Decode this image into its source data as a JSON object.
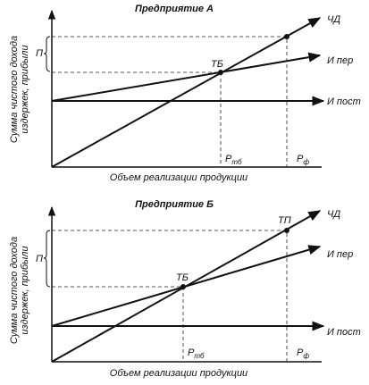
{
  "panels": [
    {
      "title": "Предприятие А",
      "y_label": [
        "Сумма чистого дохода",
        "издержек, прибыли"
      ],
      "profit": "П",
      "breakeven": "ТБ",
      "net_income": "ЧД",
      "variable_costs": "И пер",
      "fixed_costs": "И пост",
      "p_tb": {
        "main": "Р",
        "sub": "тб"
      },
      "p_f": {
        "main": "Р",
        "sub": "ф"
      },
      "x_label": "Объем реализации продукции"
    },
    {
      "title": "Предприятие Б",
      "y_label": [
        "Сумма чистого дохода",
        "издержек, прибыли"
      ],
      "profit": "П",
      "breakeven": "ТБ",
      "profit_point": "ТП",
      "net_income": "ЧД",
      "variable_costs": "И пер",
      "fixed_costs": "И пост",
      "p_tb": {
        "main": "Р",
        "sub": "тб"
      },
      "p_f": {
        "main": "Р",
        "sub": "ф"
      },
      "x_label": "Объем реализации продукции"
    }
  ]
}
